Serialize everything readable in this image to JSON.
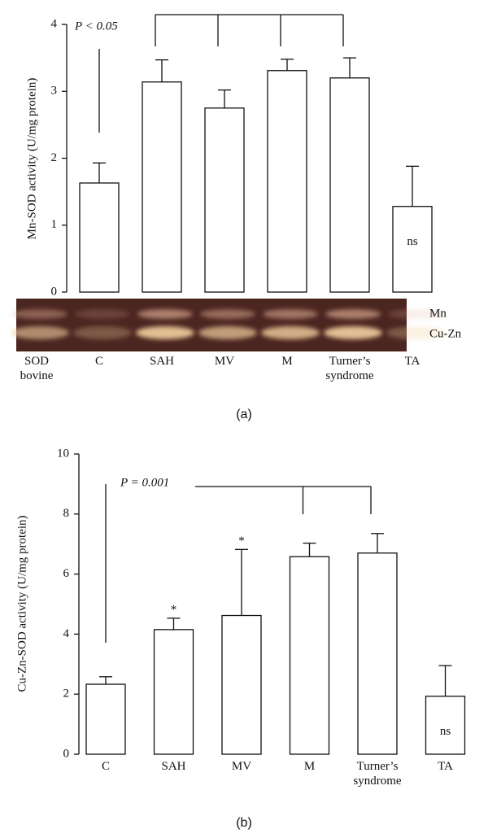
{
  "chart_data": [
    {
      "type": "bar",
      "ylabel": "Mn-SOD activity (U/mg protein)",
      "categories": [
        "SOD bovine",
        "C",
        "SAH",
        "MV",
        "M",
        "Turner’s syndrome",
        "TA"
      ],
      "values": [
        null,
        1.63,
        3.14,
        2.75,
        3.31,
        3.2,
        1.28
      ],
      "errors": [
        null,
        0.3,
        0.33,
        0.27,
        0.17,
        0.3,
        0.6
      ],
      "markers": [
        null,
        null,
        null,
        null,
        null,
        null,
        "ns"
      ],
      "significance": "P < 0.05",
      "gel_bands": [
        "Mn",
        "Cu-Zn"
      ],
      "ylim": [
        0,
        4
      ],
      "yticks": [
        0,
        1,
        2,
        3,
        4
      ],
      "color": "#ffffff",
      "caption": "(a)"
    },
    {
      "type": "bar",
      "ylabel": "Cu-Zn-SOD activity (U/mg protein)",
      "categories": [
        "C",
        "SAH",
        "MV",
        "M",
        "Turner’s syndrome",
        "TA"
      ],
      "values": [
        2.33,
        4.15,
        4.62,
        6.58,
        6.7,
        1.93
      ],
      "errors": [
        0.25,
        0.38,
        2.2,
        0.45,
        0.65,
        1.02
      ],
      "markers": [
        null,
        "*",
        "*",
        null,
        null,
        "ns"
      ],
      "significance": "P = 0.001",
      "ylim": [
        0,
        10
      ],
      "yticks": [
        0,
        2,
        4,
        6,
        8,
        10
      ],
      "color": "#ffffff",
      "caption": "(b)"
    }
  ]
}
